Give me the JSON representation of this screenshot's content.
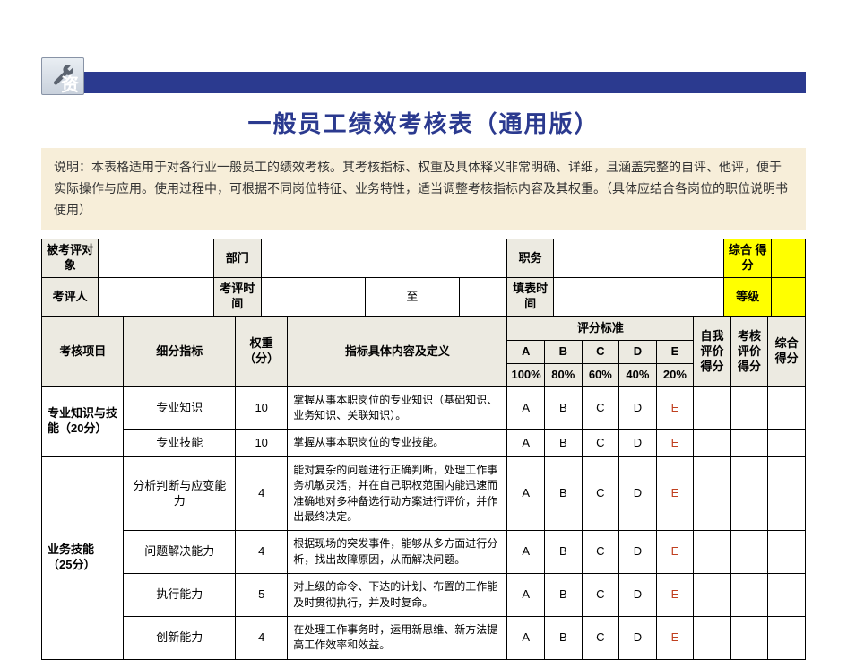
{
  "colors": {
    "ribbon": "#2b3a8f",
    "title": "#2b3a8f",
    "desc_bg": "#f7eed9",
    "header_bg": "#eceae1",
    "highlight": "#ffff00",
    "grade_e": "#c04020",
    "border": "#000000",
    "page_bg": "#ffffff"
  },
  "ribbon_text": "资",
  "title": "一般员工绩效考核表（通用版）",
  "description": "说明：本表格适用于对各行业一般员工的绩效考核。其考核指标、权重及具体释义非常明确、详细，且涵盖完整的自评、他评，便于实际操作与应用。使用过程中，可根据不同岗位特征、业务特性，适当调整考核指标内容及其权重。（具体应结合各岗位的职位说明书使用）",
  "info": {
    "cols": [
      60,
      62,
      60,
      50,
      50,
      60,
      100,
      50,
      50,
      60,
      60,
      60,
      50,
      36
    ],
    "row1": {
      "subject_label": "被考评对象",
      "dept_label": "部门",
      "position_label": "职务",
      "score_label": "综合\n得分"
    },
    "row2": {
      "reviewer_label": "考评人",
      "time_label": "考评时间",
      "to": "至",
      "fill_time_label": "填表时间",
      "grade_label": "等级"
    }
  },
  "main": {
    "cols": [
      88,
      120,
      56,
      236,
      40,
      40,
      40,
      40,
      40,
      40,
      40,
      40
    ],
    "header": {
      "category": "考核项目",
      "sub": "细分指标",
      "weight": "权重\n（分）",
      "definition": "指标具体内容及定义",
      "standard": "评分标准",
      "self": "自我\n评价\n得分",
      "review": "考核\n评价\n得分",
      "total": "综合\n得分",
      "grades": [
        "A",
        "B",
        "C",
        "D",
        "E"
      ],
      "pct": [
        "100%",
        "80%",
        "60%",
        "40%",
        "20%"
      ]
    },
    "grade_letters": [
      "A",
      "B",
      "C",
      "D",
      "E"
    ],
    "categories": [
      {
        "name": "专业知识与技能（20分）",
        "rows": [
          {
            "sub": "专业知识",
            "weight": "10",
            "def": "掌握从事本职岗位的专业知识（基础知识、业务知识、关联知识）。"
          },
          {
            "sub": "专业技能",
            "weight": "10",
            "def": "掌握从事本职岗位的专业技能。"
          }
        ]
      },
      {
        "name": "业务技能（25分）",
        "rows": [
          {
            "sub": "分析判断与应变能力",
            "weight": "4",
            "def": "能对复杂的问题进行正确判断，处理工作事务机敏灵活，并在自己职权范围内能迅速而准确地对多种备选行动方案进行评价，并作出最终决定。"
          },
          {
            "sub": "问题解决能力",
            "weight": "4",
            "def": "根据现场的突发事件，能够从多方面进行分析，找出故障原因，从而解决问题。"
          },
          {
            "sub": "执行能力",
            "weight": "5",
            "def": "对上级的命令、下达的计划、布置的工作能及时贯彻执行，并及时复命。"
          },
          {
            "sub": "创新能力",
            "weight": "4",
            "def": "在处理工作事务时，运用新思维、新方法提高工作效率和效益。"
          }
        ]
      }
    ]
  }
}
